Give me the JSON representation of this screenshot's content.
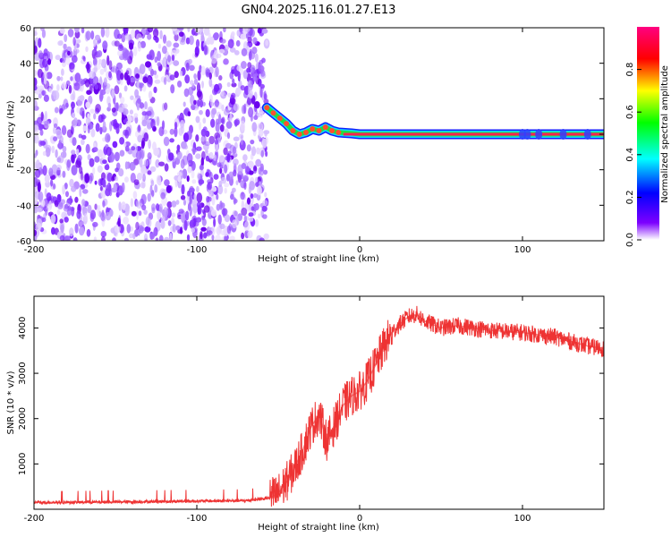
{
  "title": "GN04.2025.116.01.27.E13",
  "chart_data": [
    {
      "type": "heatmap",
      "xlabel": "Height of straight line (km)",
      "ylabel": "Frequency (Hz)",
      "xlim": [
        -200,
        150
      ],
      "ylim": [
        -60,
        60
      ],
      "x_ticks": [
        -200,
        -100,
        0,
        100
      ],
      "y_ticks": [
        -60,
        -40,
        -20,
        0,
        20,
        40,
        60
      ],
      "colorbar": {
        "label": "Normalized spectral amplitude",
        "range": [
          0,
          1
        ],
        "ticks": [
          "0.0",
          "0.2",
          "0.4",
          "0.6",
          "0.8"
        ],
        "colors": [
          "#ffffff",
          "#7d00ff",
          "#0000ff",
          "#00ffff",
          "#00ff00",
          "#ffff00",
          "#ff0000",
          "#ff0080"
        ]
      },
      "noise_region": {
        "x_range": [
          -200,
          -57
        ],
        "y_range": [
          -60,
          60
        ]
      },
      "signal_track": {
        "x": [
          -57,
          -53,
          -49,
          -45,
          -41,
          -37,
          -33,
          -29,
          -25,
          -21,
          -17,
          -13,
          -5,
          0,
          20,
          50,
          100,
          130,
          150
        ],
        "y": [
          15,
          12,
          9,
          6,
          2,
          0,
          1,
          3,
          2,
          4,
          2,
          1,
          0.5,
          0,
          0,
          0,
          0,
          0,
          0
        ]
      }
    },
    {
      "type": "line",
      "xlabel": "Height of straight line (km)",
      "ylabel": "SNR (10 * v/v)",
      "xlim": [
        -200,
        150
      ],
      "ylim": [
        0,
        4700
      ],
      "x_ticks": [
        -200,
        -100,
        0,
        100
      ],
      "y_ticks": [
        1000,
        2000,
        3000,
        4000
      ],
      "color": "#ee3333",
      "x": [
        -200,
        -150,
        -100,
        -70,
        -55,
        -50,
        -45,
        -40,
        -35,
        -30,
        -25,
        -20,
        -15,
        -10,
        -5,
        0,
        5,
        10,
        15,
        20,
        25,
        30,
        35,
        40,
        50,
        60,
        80,
        100,
        120,
        140,
        150
      ],
      "y": [
        150,
        160,
        180,
        190,
        250,
        350,
        600,
        900,
        1300,
        1800,
        2100,
        1500,
        1900,
        2300,
        2500,
        2600,
        2850,
        3200,
        3600,
        3900,
        4100,
        4250,
        4300,
        4150,
        4000,
        4050,
        3950,
        3900,
        3800,
        3600,
        3550
      ]
    }
  ]
}
